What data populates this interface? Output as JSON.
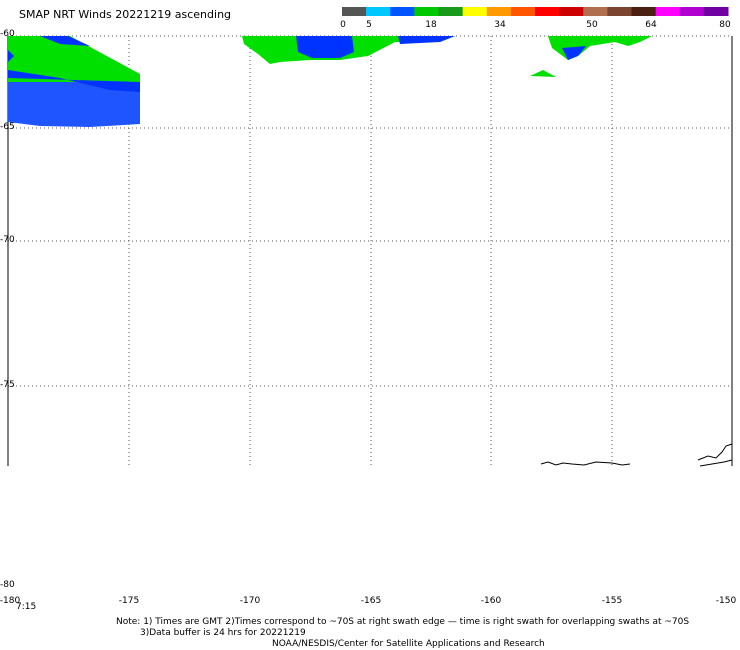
{
  "title": "SMAP NRT Winds 20221219 ascending",
  "colorbar": {
    "ticks": [
      "0",
      "5",
      "18",
      "34",
      "50",
      "64",
      "80"
    ],
    "colors": [
      "#555555",
      "#00c8ff",
      "#0055ff",
      "#00c800",
      "#1a9a1a",
      "#ffff00",
      "#ff9900",
      "#ff5500",
      "#ff0000",
      "#cc0000",
      "#b07050",
      "#7a4530",
      "#4a2010",
      "#ff00ff",
      "#b000d0",
      "#7000a0"
    ]
  },
  "latitude_labels": [
    "-60",
    "-65",
    "-70",
    "-75",
    "-80"
  ],
  "longitude_labels": [
    "-180",
    "-175",
    "-170",
    "-165",
    "-160",
    "-155",
    "-150"
  ],
  "time_label": "7:15",
  "notes": {
    "line1": "Note: 1) Times are GMT 2)Times correspond to ~70S at right swath edge — time is right swath for overlapping swaths at ~70S",
    "line2": "3)Data buffer is 24 hrs for 20221219",
    "line3": "NOAA/NESDIS/Center for Satellite Applications and Research"
  },
  "wind_colors": {
    "green": "#00e000",
    "blue": "#0033ff",
    "light_blue": "#1f66ff"
  }
}
